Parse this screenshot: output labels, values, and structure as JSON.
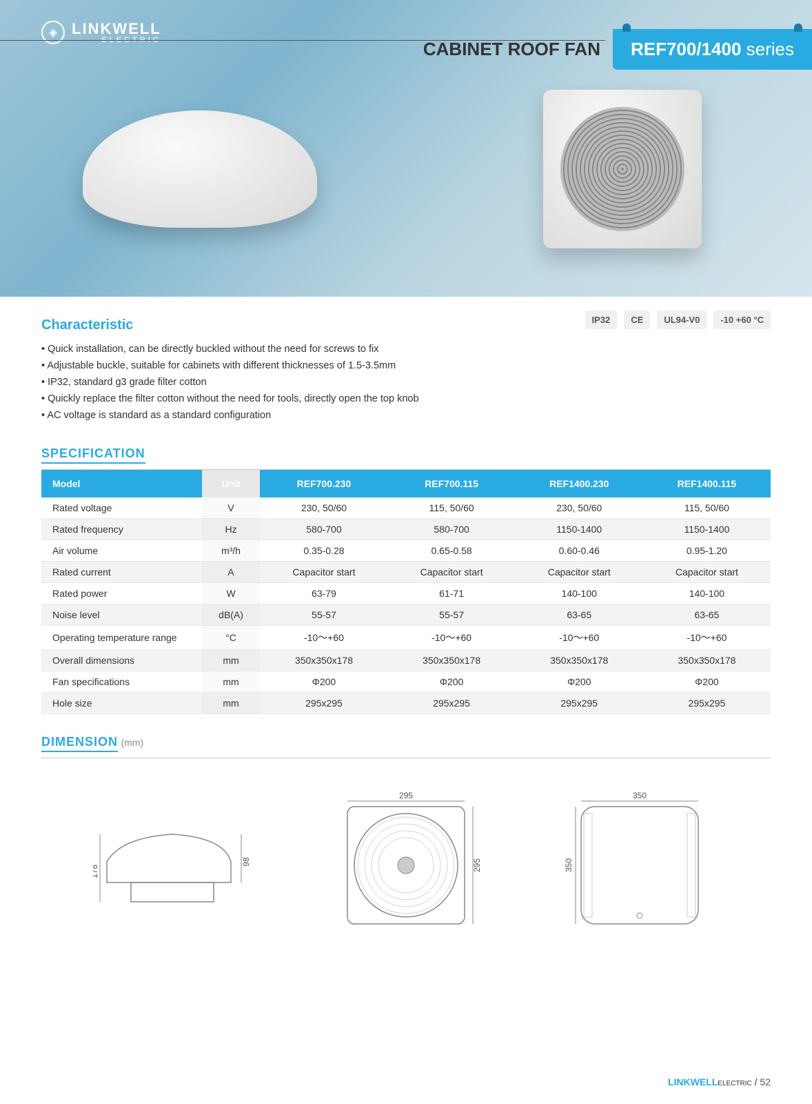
{
  "brand": {
    "name": "LINKWELL",
    "sub": "ELECTRIC"
  },
  "header": {
    "category": "CABINET ROOF FAN",
    "series_bold": "REF700/1400",
    "series_light": " series"
  },
  "badges": [
    "IP32",
    "CE",
    "UL94-V0",
    "-10 +60 °C"
  ],
  "characteristic": {
    "title": "Characteristic",
    "items": [
      "Quick installation, can be directly buckled without the need for screws to fix",
      "Adjustable buckle, suitable for cabinets with different thicknesses of 1.5-3.5mm",
      "IP32, standard g3 grade filter cotton",
      "Quickly replace the filter cotton without the need for tools, directly open the top knob",
      "AC voltage is standard as a standard configuration"
    ]
  },
  "spec": {
    "title": "SPECIFICATION",
    "headers": {
      "model": "Model",
      "unit": "Unit",
      "c1": "REF700.230",
      "c2": "REF700.115",
      "c3": "REF1400.230",
      "c4": "REF1400.115"
    },
    "rows": [
      {
        "label": "Rated voltage",
        "unit": "V",
        "v": [
          "230, 50/60",
          "115, 50/60",
          "230, 50/60",
          "115, 50/60"
        ]
      },
      {
        "label": "Rated frequency",
        "unit": "Hz",
        "v": [
          "580-700",
          "580-700",
          "1150-1400",
          "1150-1400"
        ]
      },
      {
        "label": "Air volume",
        "unit": "m³/h",
        "v": [
          "0.35-0.28",
          "0.65-0.58",
          "0.60-0.46",
          "0.95-1.20"
        ]
      },
      {
        "label": "Rated current",
        "unit": "A",
        "v": [
          "Capacitor start",
          "Capacitor start",
          "Capacitor start",
          "Capacitor start"
        ]
      },
      {
        "label": "Rated power",
        "unit": "W",
        "v": [
          "63-79",
          "61-71",
          "140-100",
          "140-100"
        ]
      },
      {
        "label": "Noise level",
        "unit": "dB(A)",
        "v": [
          "55-57",
          "55-57",
          "63-65",
          "63-65"
        ]
      },
      {
        "label": "Operating temperature range",
        "unit": "°C",
        "v": [
          "-10～+60",
          "-10～+60",
          "-10～+60",
          "-10～+60"
        ]
      },
      {
        "label": "Overall dimensions",
        "unit": "mm",
        "v": [
          "350x350x178",
          "350x350x178",
          "350x350x178",
          "350x350x178"
        ]
      },
      {
        "label": "Fan specifications",
        "unit": "mm",
        "v": [
          "Φ200",
          "Φ200",
          "Φ200",
          "Φ200"
        ]
      },
      {
        "label": "Hole size",
        "unit": "mm",
        "v": [
          "295x295",
          "295x295",
          "295x295",
          "295x295"
        ]
      }
    ]
  },
  "dimension": {
    "title": "DIMENSION",
    "unit_label": "(mm)",
    "side": {
      "height": "178",
      "depth": "98"
    },
    "front": {
      "w": "295",
      "h": "295"
    },
    "top": {
      "w": "350",
      "h": "350"
    }
  },
  "footer": {
    "brand": "LINKWELL",
    "sub": "ELECTRIC",
    "page": "52"
  }
}
